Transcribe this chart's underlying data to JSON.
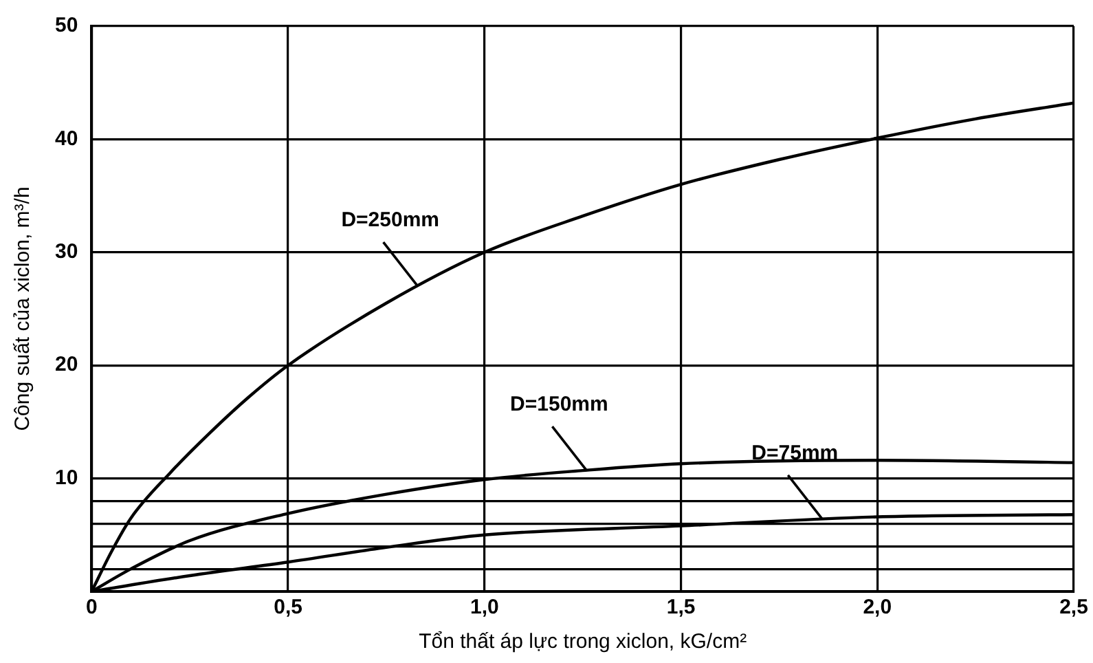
{
  "chart_data": {
    "type": "line",
    "xlabel": "Tổn thất áp lực trong xiclon, kG/cm²",
    "ylabel": "Công suất của xiclon, m³/h",
    "xlim": [
      0,
      2.5
    ],
    "xticks": [
      0,
      {
        "value": 0.5,
        "label": "0,5"
      },
      {
        "value": 1,
        "label": "1,0"
      },
      {
        "value": 1.5,
        "label": "1,5"
      },
      {
        "value": 2,
        "label": "2,0"
      },
      {
        "value": 2.5,
        "label": "2,5"
      }
    ],
    "ylim": [
      0,
      50
    ],
    "yticks": [
      {
        "value": 0,
        "label": null
      },
      {
        "value": 2,
        "label": null
      },
      {
        "value": 4,
        "label": null
      },
      {
        "value": 6,
        "label": null
      },
      {
        "value": 8,
        "label": null
      },
      10,
      20,
      30,
      40,
      50
    ],
    "grid": true,
    "legend": false,
    "marker": "none",
    "line_style": "solid",
    "series": [
      {
        "color": "#000000",
        "x": [
          0,
          0.05,
          0.1,
          0.2,
          0.3,
          0.4,
          0.5,
          0.75,
          1,
          1.25,
          1.5,
          1.75,
          2,
          2.25,
          2.5
        ],
        "values": [
          0,
          3.5,
          6.5,
          10.5,
          14,
          17.2,
          20,
          25.5,
          30,
          33.2,
          36,
          38.2,
          40.1,
          41.8,
          43.2
        ]
      },
      {
        "color": "#000000",
        "x": [
          0,
          0.1,
          0.25,
          0.5,
          0.75,
          1,
          1.25,
          1.5,
          2,
          2.5
        ],
        "values": [
          0,
          2,
          4.5,
          6.9,
          8.6,
          9.9,
          10.7,
          11.3,
          11.6,
          11.4
        ]
      },
      {
        "color": "#000000",
        "x": [
          0,
          0.25,
          0.5,
          0.75,
          1,
          1.5,
          2,
          2.5
        ],
        "values": [
          0,
          1.4,
          2.6,
          3.9,
          5,
          5.8,
          6.6,
          6.8
        ]
      }
    ],
    "annotations": [
      {
        "text": "D=250mm",
        "x": 0.83,
        "y": 27
      },
      {
        "text": "D=150mm",
        "x": 1.26,
        "y": 10.7
      },
      {
        "text": "D=75mm",
        "x": 1.86,
        "y": 6.4
      }
    ]
  }
}
